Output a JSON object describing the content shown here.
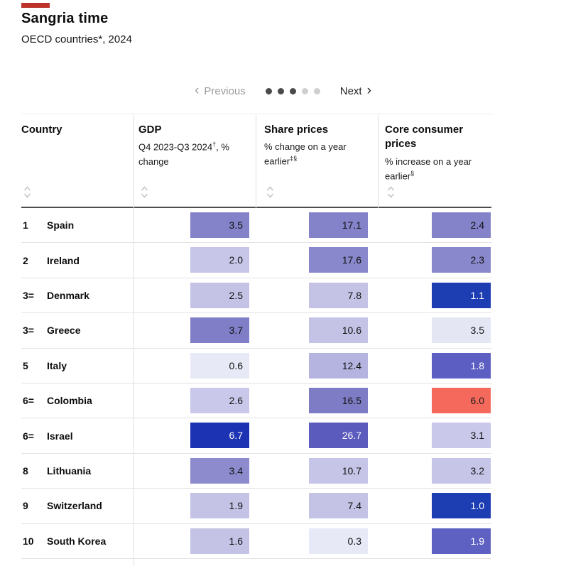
{
  "header": {
    "title": "Sangria time",
    "subtitle": "OECD countries*, 2024"
  },
  "colors": {
    "accent_red_bar": "#bb332b",
    "negative_highlight": "#f4695c",
    "dark_blue": "#1d3db3",
    "medium_purple": "#8482c9",
    "light_purple": "#c4c3e6",
    "pale_purple": "#e8e9f6",
    "header_rule": "#4d4d4d",
    "row_rule": "#e3e3e3"
  },
  "pagination": {
    "prev_chevron": "‹",
    "previous_label": "Previous",
    "next_label": "Next",
    "next_chevron": "›",
    "dots_total": 5,
    "dots_active": 3
  },
  "table": {
    "columns": [
      {
        "label": "Country",
        "sub": "",
        "sup": "",
        "sub2": ""
      },
      {
        "label": "GDP",
        "sub": "Q4 2023-Q3 2024",
        "sup": "†",
        "sub2": ", % change"
      },
      {
        "label": "Share prices",
        "sub": "% change on a year earlier",
        "sup": "‡§",
        "sub2": ""
      },
      {
        "label": "Core consumer prices",
        "sub": "% increase on a year earlier",
        "sup": "§",
        "sub2": ""
      }
    ],
    "rows": [
      {
        "rank": "1",
        "country": "Spain",
        "gdp": {
          "value": "3.5",
          "bg": "#8482c9",
          "fg": "#121212"
        },
        "share": {
          "value": "17.1",
          "bg": "#8482c9",
          "fg": "#121212"
        },
        "core": {
          "value": "2.4",
          "bg": "#8482c9",
          "fg": "#121212"
        }
      },
      {
        "rank": "2",
        "country": "Ireland",
        "gdp": {
          "value": "2.0",
          "bg": "#c7c6e9",
          "fg": "#121212"
        },
        "share": {
          "value": "17.6",
          "bg": "#8a88cc",
          "fg": "#121212"
        },
        "core": {
          "value": "2.3",
          "bg": "#8a88cc",
          "fg": "#121212"
        }
      },
      {
        "rank": "3=",
        "country": "Denmark",
        "gdp": {
          "value": "2.5",
          "bg": "#c4c3e6",
          "fg": "#121212"
        },
        "share": {
          "value": "7.8",
          "bg": "#c4c3e6",
          "fg": "#121212"
        },
        "core": {
          "value": "1.1",
          "bg": "#1d3db3",
          "fg": "#ffffff"
        }
      },
      {
        "rank": "3=",
        "country": "Greece",
        "gdp": {
          "value": "3.7",
          "bg": "#807ec7",
          "fg": "#121212"
        },
        "share": {
          "value": "10.6",
          "bg": "#c4c3e6",
          "fg": "#121212"
        },
        "core": {
          "value": "3.5",
          "bg": "#e5e6f4",
          "fg": "#121212"
        }
      },
      {
        "rank": "5",
        "country": "Italy",
        "gdp": {
          "value": "0.6",
          "bg": "#e8e9f6",
          "fg": "#121212"
        },
        "share": {
          "value": "12.4",
          "bg": "#b5b4e0",
          "fg": "#121212"
        },
        "core": {
          "value": "1.8",
          "bg": "#5c5fc1",
          "fg": "#ffffff"
        }
      },
      {
        "rank": "6=",
        "country": "Colombia",
        "gdp": {
          "value": "2.6",
          "bg": "#c9c8ea",
          "fg": "#121212"
        },
        "share": {
          "value": "16.5",
          "bg": "#7e7cc5",
          "fg": "#121212"
        },
        "core": {
          "value": "6.0",
          "bg": "#f4695c",
          "fg": "#1d1d1d"
        }
      },
      {
        "rank": "6=",
        "country": "Israel",
        "gdp": {
          "value": "6.7",
          "bg": "#1c33b3",
          "fg": "#ffffff"
        },
        "share": {
          "value": "26.7",
          "bg": "#5b5abd",
          "fg": "#ffffff"
        },
        "core": {
          "value": "3.1",
          "bg": "#c9c8ea",
          "fg": "#121212"
        }
      },
      {
        "rank": "8",
        "country": "Lithuania",
        "gdp": {
          "value": "3.4",
          "bg": "#8d8bcd",
          "fg": "#121212"
        },
        "share": {
          "value": "10.7",
          "bg": "#c6c5e8",
          "fg": "#121212"
        },
        "core": {
          "value": "3.2",
          "bg": "#c6c5e8",
          "fg": "#121212"
        }
      },
      {
        "rank": "9",
        "country": "Switzerland",
        "gdp": {
          "value": "1.9",
          "bg": "#c4c3e6",
          "fg": "#121212"
        },
        "share": {
          "value": "7.4",
          "bg": "#c4c3e6",
          "fg": "#121212"
        },
        "core": {
          "value": "1.0",
          "bg": "#1d3db3",
          "fg": "#ffffff"
        }
      },
      {
        "rank": "10",
        "country": "South Korea",
        "gdp": {
          "value": "1.6",
          "bg": "#c4c3e6",
          "fg": "#121212"
        },
        "share": {
          "value": "0.3",
          "bg": "#e8e9f6",
          "fg": "#121212"
        },
        "core": {
          "value": "1.9",
          "bg": "#5e61c2",
          "fg": "#ffffff"
        }
      }
    ]
  },
  "chart_data": {
    "type": "table",
    "title": "Sangria time",
    "subtitle": "OECD countries*, 2024",
    "columns": [
      "Country",
      "GDP, Q4 2023-Q3 2024, % change",
      "Share prices, % change on a year earlier",
      "Core consumer prices, % increase on a year earlier"
    ],
    "rows": [
      {
        "rank": "1",
        "country": "Spain",
        "gdp": 3.5,
        "share_prices": 17.1,
        "core_consumer_prices": 2.4
      },
      {
        "rank": "2",
        "country": "Ireland",
        "gdp": 2.0,
        "share_prices": 17.6,
        "core_consumer_prices": 2.3
      },
      {
        "rank": "3=",
        "country": "Denmark",
        "gdp": 2.5,
        "share_prices": 7.8,
        "core_consumer_prices": 1.1
      },
      {
        "rank": "3=",
        "country": "Greece",
        "gdp": 3.7,
        "share_prices": 10.6,
        "core_consumer_prices": 3.5
      },
      {
        "rank": "5",
        "country": "Italy",
        "gdp": 0.6,
        "share_prices": 12.4,
        "core_consumer_prices": 1.8
      },
      {
        "rank": "6=",
        "country": "Colombia",
        "gdp": 2.6,
        "share_prices": 16.5,
        "core_consumer_prices": 6.0
      },
      {
        "rank": "6=",
        "country": "Israel",
        "gdp": 6.7,
        "share_prices": 26.7,
        "core_consumer_prices": 3.1
      },
      {
        "rank": "8",
        "country": "Lithuania",
        "gdp": 3.4,
        "share_prices": 10.7,
        "core_consumer_prices": 3.2
      },
      {
        "rank": "9",
        "country": "Switzerland",
        "gdp": 1.9,
        "share_prices": 7.4,
        "core_consumer_prices": 1.0
      },
      {
        "rank": "10",
        "country": "South Korea",
        "gdp": 1.6,
        "share_prices": 0.3,
        "core_consumer_prices": 1.9
      }
    ],
    "layout": {
      "heatmap_cells": true,
      "sortable_columns": true,
      "pagination": "page 1 of pages shown by 5 dots, 3 active"
    }
  }
}
